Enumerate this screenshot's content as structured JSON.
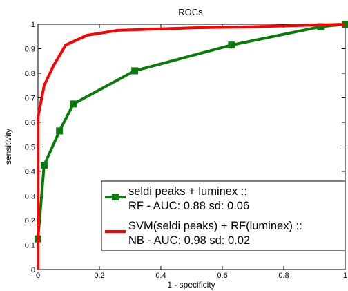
{
  "chart_data": {
    "type": "line",
    "title": "ROCs",
    "xlabel": "1 - specificity",
    "ylabel": "sensitivity",
    "xlim": [
      0,
      1
    ],
    "ylim": [
      0,
      1
    ],
    "x_ticks": [
      "0",
      "0.2",
      "0.4",
      "0.6",
      "0.8",
      "1"
    ],
    "y_ticks": [
      "0",
      "0.1",
      "0.2",
      "0.3",
      "0.4",
      "0.5",
      "0.6",
      "0.7",
      "0.8",
      "0.9",
      "1"
    ],
    "grid": false,
    "legend_position": "bottom-right",
    "series": [
      {
        "name_lines": [
          "seldi peaks + luminex ::",
          "RF - AUC: 0.88 sd: 0.06"
        ],
        "color": "#0a7a0a",
        "marker": "square",
        "points": [
          [
            0,
            0
          ],
          [
            0,
            0.125
          ],
          [
            0.02,
            0.425
          ],
          [
            0.07,
            0.565
          ],
          [
            0.115,
            0.675
          ],
          [
            0.315,
            0.81
          ],
          [
            0.63,
            0.915
          ],
          [
            0.92,
            0.99
          ],
          [
            1,
            1
          ]
        ]
      },
      {
        "name_lines": [
          "SVM(seldi peaks) + RF(luminex) ::",
          "NB - AUC: 0.98 sd: 0.02"
        ],
        "color": "#ff0000",
        "marker": "none",
        "points": [
          [
            0,
            0
          ],
          [
            0,
            0.62
          ],
          [
            0.02,
            0.75
          ],
          [
            0.05,
            0.83
          ],
          [
            0.09,
            0.915
          ],
          [
            0.16,
            0.955
          ],
          [
            0.26,
            0.975
          ],
          [
            0.5,
            0.985
          ],
          [
            0.7,
            0.99
          ],
          [
            1,
            1
          ]
        ]
      }
    ]
  }
}
